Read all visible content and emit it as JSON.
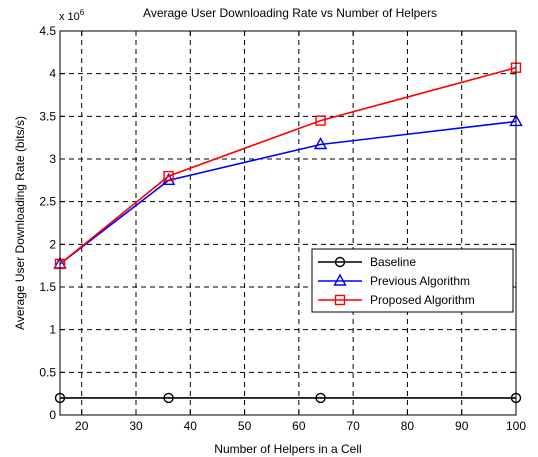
{
  "chart_data": {
    "type": "line",
    "title": "Average User Downloading Rate vs Number of Helpers",
    "xlabel": "Number of Helpers in a Cell",
    "ylabel": "Average User Downloading Rate (bits/s)",
    "y_multiplier_base": "x 10",
    "y_multiplier_exp": "6",
    "xlim": [
      16,
      100
    ],
    "ylim": [
      0,
      4.5
    ],
    "x_ticks": [
      20,
      30,
      40,
      50,
      60,
      70,
      80,
      90,
      100
    ],
    "x_tick_labels": [
      "20",
      "30",
      "40",
      "50",
      "60",
      "70",
      "80",
      "90",
      "100"
    ],
    "y_ticks": [
      0,
      0.5,
      1,
      1.5,
      2,
      2.5,
      3,
      3.5,
      4,
      4.5
    ],
    "y_tick_labels": [
      "0",
      "0.5",
      "1",
      "1.5",
      "2",
      "2.5",
      "3",
      "3.5",
      "4",
      "4.5"
    ],
    "grid": true,
    "legend_position": "center-right",
    "x": [
      16,
      36,
      64,
      100
    ],
    "series": [
      {
        "name": "Baseline",
        "values": [
          0.2,
          0.2,
          0.2,
          0.2
        ],
        "color": "#000000",
        "marker": "circle"
      },
      {
        "name": "Previous Algorithm",
        "values": [
          1.77,
          2.75,
          3.17,
          3.44
        ],
        "color": "#0000ff",
        "marker": "triangle"
      },
      {
        "name": "Proposed Algorithm",
        "values": [
          1.77,
          2.8,
          3.45,
          4.07
        ],
        "color": "#ff0000",
        "marker": "square"
      }
    ]
  }
}
